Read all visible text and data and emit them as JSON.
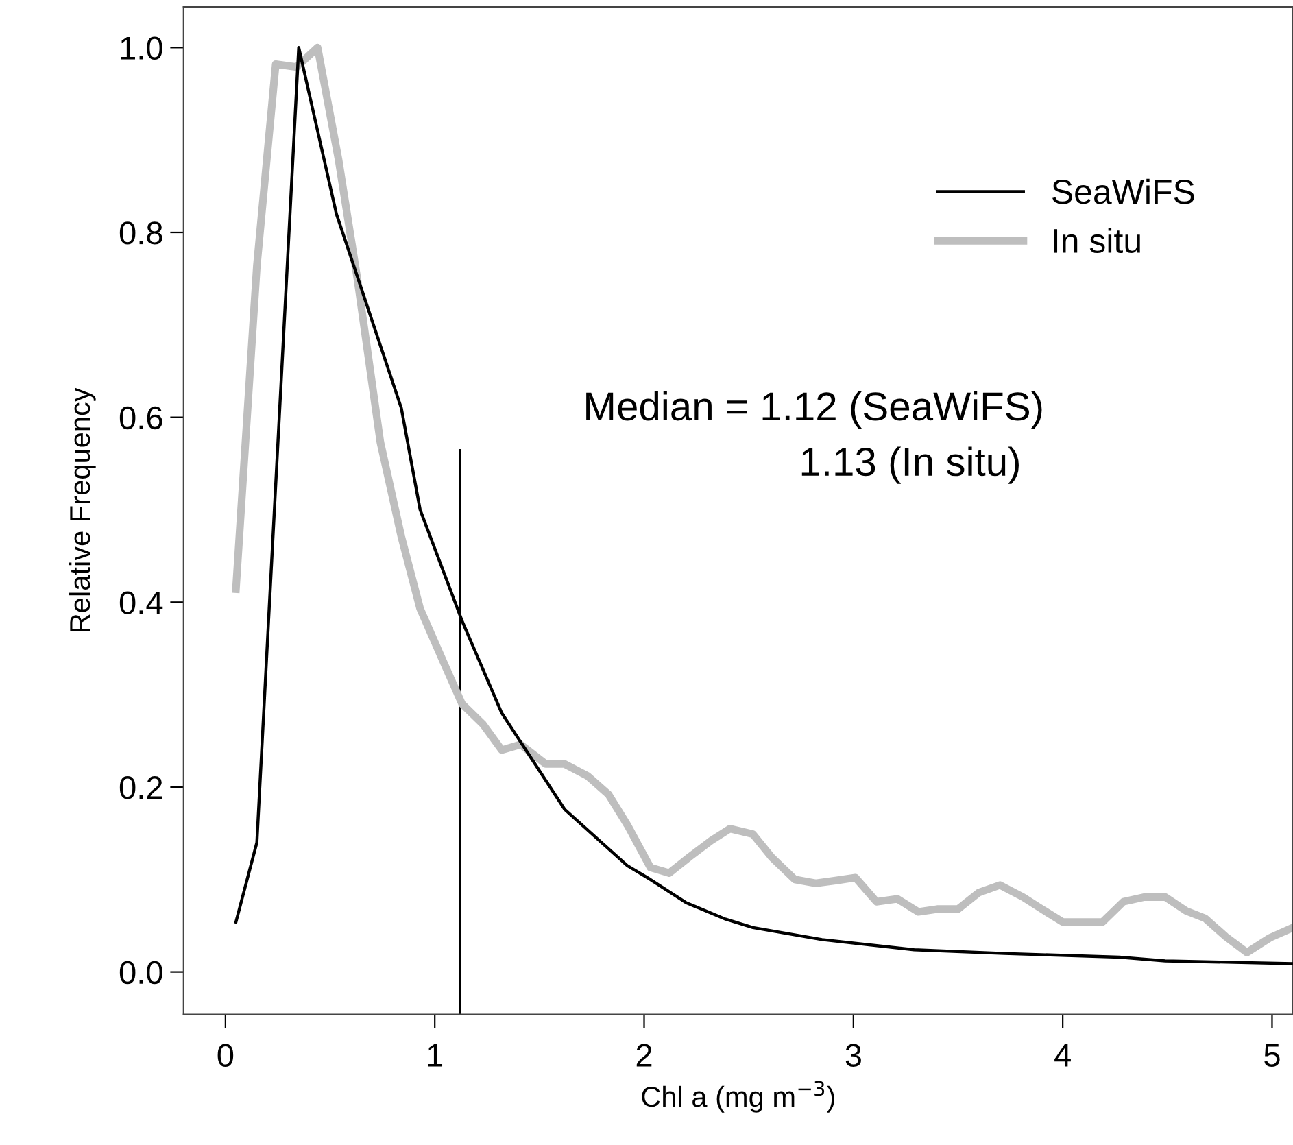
{
  "chart_data": {
    "type": "line",
    "xlabel": "Chl a (mg m$^{−3}$)",
    "ylabel": "Relative Frequency",
    "xlim": [
      -0.2,
      5.1
    ],
    "xticks": [
      0,
      1,
      2,
      3,
      4,
      5
    ],
    "ylim": [
      -0.046,
      1.044
    ],
    "yticks": [
      {
        "value": 0,
        "label": "0.0"
      },
      0.2,
      0.4,
      0.6,
      0.8,
      {
        "value": 1,
        "label": "1.0"
      }
    ],
    "series": [
      {
        "name": "SeaWiFS",
        "color": "#000000",
        "x": [
          0.05,
          0.15,
          0.35,
          0.53,
          0.84,
          0.93,
          1.13,
          1.32,
          1.62,
          1.92,
          2.03,
          2.2,
          2.39,
          2.52,
          2.85,
          3.29,
          3.72,
          4.27,
          4.49,
          5.1
        ],
        "values": [
          0.054,
          0.14,
          1.0,
          0.82,
          0.61,
          0.5,
          0.38,
          0.28,
          0.176,
          0.115,
          0.1,
          0.075,
          0.057,
          0.048,
          0.035,
          0.024,
          0.02,
          0.016,
          0.012,
          0.009
        ]
      },
      {
        "name": "In situ",
        "color": "#bebebe",
        "x": [
          0.05,
          0.15,
          0.24,
          0.34,
          0.44,
          0.54,
          0.63,
          0.74,
          0.84,
          0.93,
          1.04,
          1.13,
          1.23,
          1.32,
          1.41,
          1.53,
          1.62,
          1.73,
          1.83,
          1.92,
          2.03,
          2.12,
          2.22,
          2.32,
          2.41,
          2.52,
          2.61,
          2.72,
          2.82,
          2.92,
          3.01,
          3.11,
          3.21,
          3.31,
          3.4,
          3.5,
          3.6,
          3.7,
          3.81,
          3.9,
          4.0,
          4.19,
          4.29,
          4.39,
          4.49,
          4.59,
          4.68,
          4.78,
          4.88,
          4.99,
          5.1
        ],
        "values": [
          0.414,
          0.764,
          0.982,
          0.979,
          1.0,
          0.879,
          0.75,
          0.573,
          0.471,
          0.393,
          0.336,
          0.29,
          0.268,
          0.24,
          0.246,
          0.225,
          0.225,
          0.212,
          0.192,
          0.159,
          0.113,
          0.107,
          0.125,
          0.142,
          0.155,
          0.149,
          0.124,
          0.1,
          0.096,
          0.099,
          0.102,
          0.076,
          0.079,
          0.065,
          0.068,
          0.068,
          0.086,
          0.094,
          0.081,
          0.068,
          0.054,
          0.054,
          0.076,
          0.081,
          0.081,
          0.066,
          0.058,
          0.038,
          0.021,
          0.037,
          0.048
        ]
      }
    ],
    "ref_lines": [
      {
        "axis": "x",
        "value": 1.12,
        "color": "#000000"
      }
    ],
    "annotations": [
      "Median = 1.12 (SeaWiFS)",
      "1.13 (In situ)"
    ],
    "legend": "top right",
    "grid": false
  }
}
